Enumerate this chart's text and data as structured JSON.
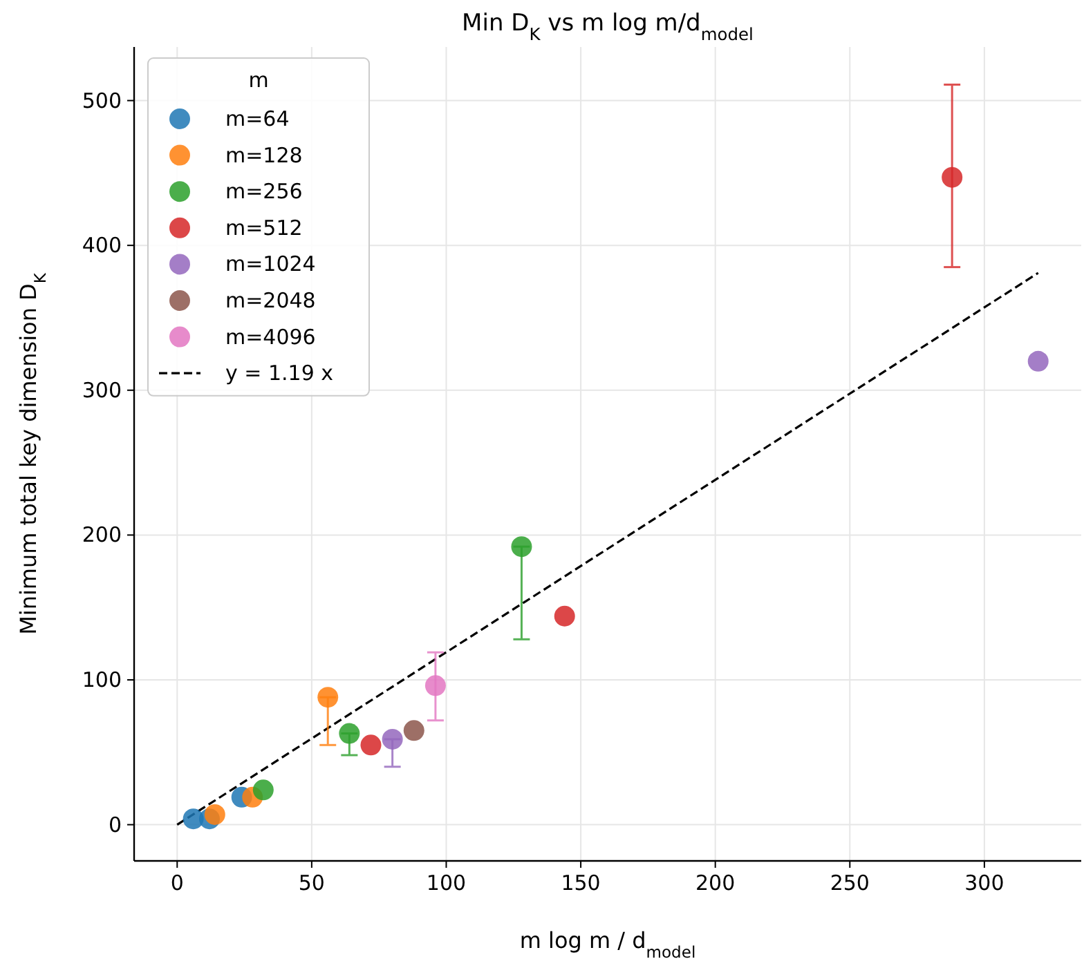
{
  "chart_data": {
    "type": "scatter",
    "title": "Min D$_{K}$ vs m log m/d$_{model}$",
    "xlabel": "m log m / d$_{model}$",
    "ylabel": "Minimum total key dimension D$_{K}$",
    "legend_title": "m",
    "legend": "top left",
    "grid": true,
    "marker": "circle",
    "xlim": [
      -16,
      336
    ],
    "xticks": [
      0,
      50,
      100,
      150,
      200,
      250,
      300
    ],
    "ylim": [
      -25,
      537
    ],
    "yticks": [
      0,
      100,
      200,
      300,
      400,
      500
    ],
    "series": [
      {
        "name": "m=64",
        "color": "#1f77b4",
        "x": [
          6,
          12,
          24
        ],
        "values": [
          4,
          4,
          19
        ],
        "errors": [
          null,
          null,
          null
        ]
      },
      {
        "name": "m=128",
        "color": "#ff7f0e",
        "x": [
          14,
          28,
          56
        ],
        "values": [
          7,
          19,
          88
        ],
        "errors": [
          null,
          null,
          [
            55,
            88
          ]
        ]
      },
      {
        "name": "m=256",
        "color": "#2ca02c",
        "x": [
          32,
          64,
          128
        ],
        "values": [
          24,
          63,
          192
        ],
        "errors": [
          null,
          [
            48,
            63
          ],
          [
            128,
            192
          ]
        ]
      },
      {
        "name": "m=512",
        "color": "#d62728",
        "x": [
          72,
          144,
          288
        ],
        "values": [
          55,
          144,
          447
        ],
        "errors": [
          null,
          null,
          [
            385,
            511
          ]
        ]
      },
      {
        "name": "m=1024",
        "color": "#9467bd",
        "x": [
          80,
          320
        ],
        "values": [
          59,
          320
        ],
        "errors": [
          [
            40,
            59
          ],
          null
        ]
      },
      {
        "name": "m=2048",
        "color": "#8c564b",
        "x": [
          88
        ],
        "values": [
          65
        ],
        "errors": [
          null
        ]
      },
      {
        "name": "m=4096",
        "color": "#e377c2",
        "x": [
          96
        ],
        "values": [
          96
        ],
        "errors": [
          [
            72,
            119
          ]
        ]
      },
      {
        "name": "y = 1.19 x",
        "type": "line",
        "color": "#000000",
        "line_style": "dashed",
        "marker": "none",
        "x": [
          0,
          320
        ],
        "values": [
          0,
          381
        ]
      }
    ]
  }
}
